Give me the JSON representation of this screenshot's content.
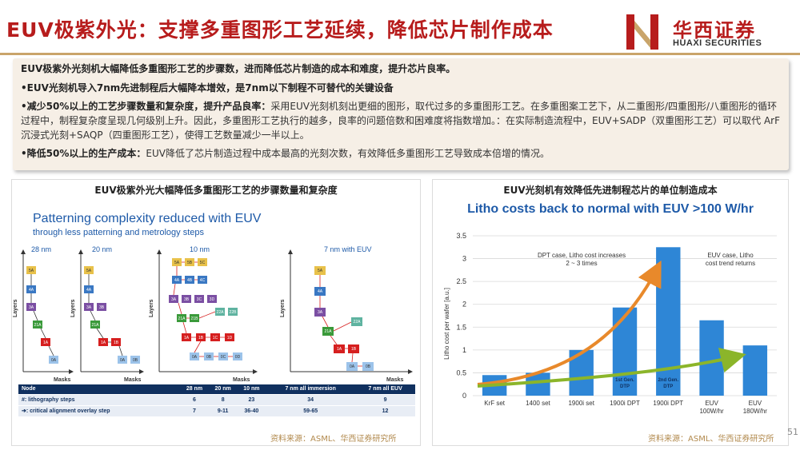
{
  "slide": {
    "title": "EUV极紫外光：支撑多重图形工艺延续，降低芯片制作成本",
    "page_number": "51"
  },
  "logo": {
    "cn": "华西证券",
    "en": "HUAXI SECURITIES"
  },
  "summary": {
    "lead": "EUV极紫外光刻机大幅降低多重图形工艺的步骤数，进而降低芯片制造的成本和难度，提升芯片良率。",
    "bullets": [
      {
        "head": "•EUV光刻机导入7nm先进制程后大幅降本增效，是7nm以下制程不可替代的关键设备",
        "body": ""
      },
      {
        "head": "•减少50%以上的工艺步骤数量和复杂度，提升产品良率：",
        "body": "采用EUV光刻机刻出更细的图形，取代过多的多重图形工艺。在多重图案工艺下，从二重图形/四重图形/八重图形的循环过程中，制程复杂度呈现几何级别上升。因此，多重图形工艺执行的越多，良率的问题倍数和困难度将指数增加。：在实际制造流程中，EUV+SADP（双重图形工艺）可以取代 ArF沉浸式光刻+SAQP（四重图形工艺），使得工艺数量减少一半以上。"
      },
      {
        "head": "•降低50%以上的生产成本：",
        "body": "EUV降低了芯片制造过程中成本最高的光刻次数，有效降低多重图形工艺导致成本倍增的情况。"
      }
    ]
  },
  "left_panel": {
    "caption": "EUV极紫外光大幅降低多重图形工艺的步骤数量和复杂度",
    "heading": "Patterning complexity reduced with EUV",
    "subheading": "through less patterning and metrology steps",
    "axis_y": "Layers",
    "axis_x": "Masks",
    "flow_titles": [
      "28 nm",
      "20 nm",
      "10 nm",
      "7 nm with EUV"
    ],
    "table": {
      "headers": [
        "Node",
        "28 nm",
        "20 nm",
        "10 nm",
        "7 nm all immersion",
        "7 nm all EUV"
      ],
      "rows": [
        [
          "#: lithography steps",
          "6",
          "8",
          "23",
          "34",
          "9"
        ],
        [
          "➔: critical alignment overlay step",
          "7",
          "9-11",
          "36-40",
          "59-65",
          "12"
        ]
      ]
    },
    "source": "资料来源：ASML、华西证券研究所"
  },
  "right_panel": {
    "caption": "EUV光刻机有效降低先进制程芯片的单位制造成本",
    "source": "资料来源：ASML、华西证券研究所",
    "annotations": {
      "dpt": "DPT case, Litho cost increases 2 ~ 3 times",
      "euv": "EUV case, Litho cost trend returns",
      "bar_label_1": "1st Gen. DTP",
      "bar_label_2": "2nd Gen. DTP"
    }
  },
  "chart_data": {
    "type": "bar",
    "title": "Litho costs back to normal with EUV >100 W/hr",
    "ylabel": "Litho cost per wafer [a.u.]",
    "xlabel": "",
    "categories": [
      "KrF set",
      "1400 set",
      "1900i set",
      "1900i DPT",
      "1900i DPT",
      "EUV 100W/hr",
      "EUV 180W/hr"
    ],
    "values": [
      0.45,
      0.5,
      1.0,
      1.93,
      3.25,
      1.65,
      1.1
    ],
    "ylim": [
      0,
      3.5
    ],
    "yticks": [
      "0",
      "0.5",
      "1",
      "1.5",
      "2",
      "2.5",
      "3",
      "3.5"
    ],
    "grid": true,
    "bar_color": "#2e86d6"
  }
}
